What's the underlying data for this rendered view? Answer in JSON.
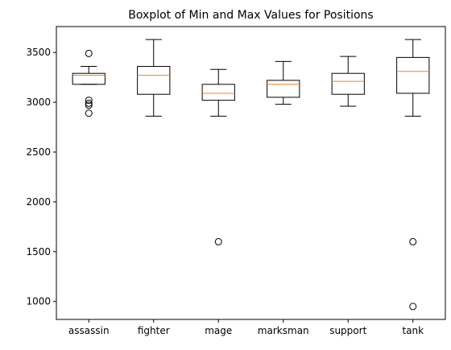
{
  "chart_data": {
    "type": "boxplot",
    "title": "Boxplot of Min and Max Values for Positions",
    "xlabel": "",
    "ylabel": "",
    "ylim": [
      820,
      3760
    ],
    "yticks": [
      1000,
      1500,
      2000,
      2500,
      3000,
      3500
    ],
    "grid": false,
    "median_color": "#ff7f0e",
    "box_color": "#000000",
    "categories": [
      "assassin",
      "fighter",
      "mage",
      "marksman",
      "support",
      "tank"
    ],
    "boxes": [
      {
        "name": "assassin",
        "whisker_low": 3180,
        "q1": 3180,
        "median": 3270,
        "q3": 3290,
        "whisker_high": 3360,
        "outliers": [
          3490,
          3020,
          2990,
          2970,
          2890
        ]
      },
      {
        "name": "fighter",
        "whisker_low": 2860,
        "q1": 3080,
        "median": 3270,
        "q3": 3360,
        "whisker_high": 3630,
        "outliers": []
      },
      {
        "name": "mage",
        "whisker_low": 2860,
        "q1": 3020,
        "median": 3090,
        "q3": 3180,
        "whisker_high": 3330,
        "outliers": [
          1600
        ]
      },
      {
        "name": "marksman",
        "whisker_low": 2980,
        "q1": 3050,
        "median": 3180,
        "q3": 3220,
        "whisker_high": 3410,
        "outliers": []
      },
      {
        "name": "support",
        "whisker_low": 2960,
        "q1": 3080,
        "median": 3210,
        "q3": 3290,
        "whisker_high": 3460,
        "outliers": []
      },
      {
        "name": "tank",
        "whisker_low": 2860,
        "q1": 3090,
        "median": 3310,
        "q3": 3450,
        "whisker_high": 3630,
        "outliers": [
          1600,
          950
        ]
      }
    ]
  }
}
